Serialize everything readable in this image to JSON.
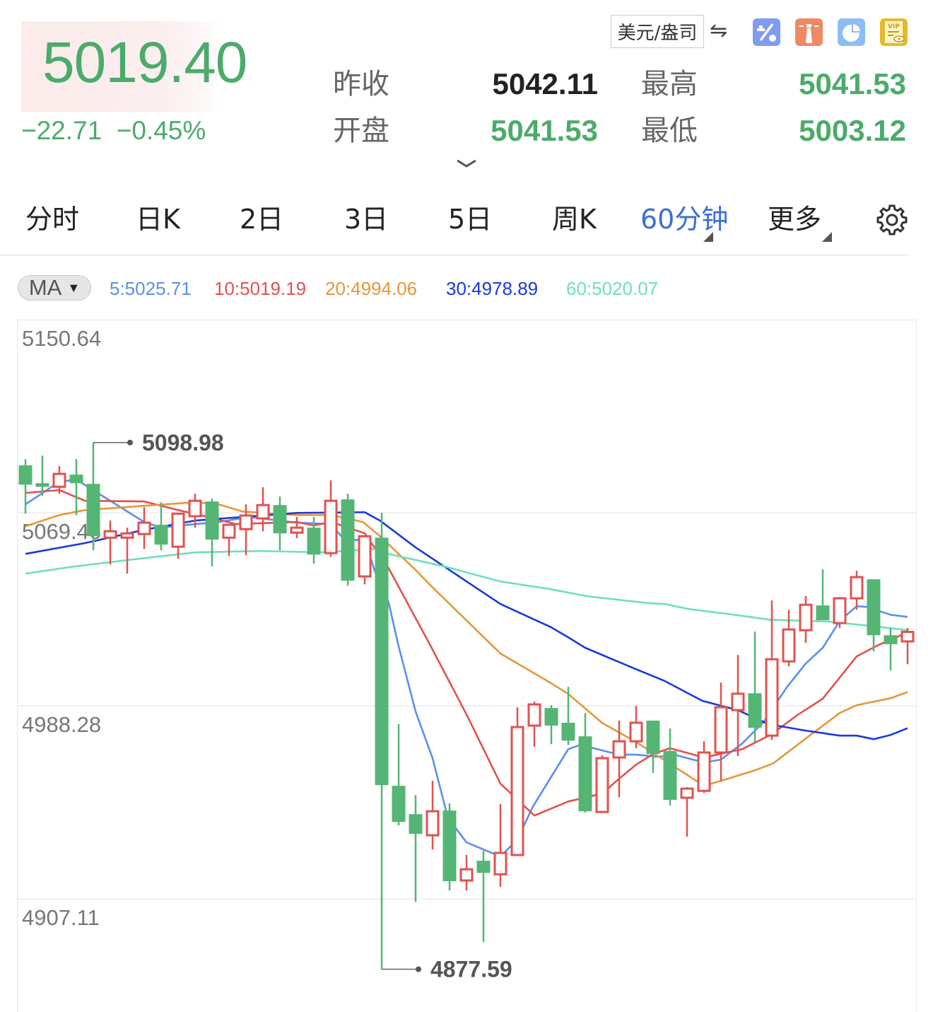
{
  "quote": {
    "price": "5019.40",
    "change": "−22.71",
    "change_pct": "−0.45%",
    "prev_close_label": "昨收",
    "prev_close": "5042.11",
    "open_label": "开盘",
    "open": "5041.53",
    "high_label": "最高",
    "high": "5041.53",
    "low_label": "最低",
    "low": "5003.12",
    "up_color": "#e0524f",
    "down_color": "#4cab6b"
  },
  "toolbar": {
    "currency": "美元/盎司",
    "swap_icon": "⇋",
    "icons": [
      "percent-icon",
      "lighthouse-icon",
      "pie-chart-icon",
      "vip-document-icon"
    ]
  },
  "tabs": [
    {
      "label": "分时"
    },
    {
      "label": "日K"
    },
    {
      "label": "2日"
    },
    {
      "label": "3日"
    },
    {
      "label": "5日"
    },
    {
      "label": "周K"
    },
    {
      "label": "60分钟",
      "active": true
    },
    {
      "label": "更多"
    }
  ],
  "indicator": {
    "selector": "MA",
    "values": [
      {
        "label": "5:5025.71",
        "color": "#5b8ff0"
      },
      {
        "label": "10:5019.19",
        "color": "#e0524f"
      },
      {
        "label": "20:4994.06",
        "color": "#e8963a"
      },
      {
        "label": "30:4978.89",
        "color": "#1a3ad8"
      },
      {
        "label": "60:5020.07",
        "color": "#6ee0bb"
      }
    ]
  },
  "chart_data": {
    "type": "candlestick",
    "interval": "60分钟",
    "y_ticks": [
      "5150.64",
      "5069.46",
      "4988.28",
      "4907.11"
    ],
    "ylim": [
      4859.6,
      5150.64
    ],
    "grid": true,
    "max_label": "5098.98",
    "min_label": "4877.59",
    "up_color": "#e0524f",
    "down_color": "#55b575",
    "candles_ohlc": [
      [
        5089.4,
        5092.0,
        5069.1,
        5081.3
      ],
      [
        5081.9,
        5093.5,
        5076.6,
        5080.4
      ],
      [
        5080.4,
        5089.1,
        5077.5,
        5085.8
      ],
      [
        5085.5,
        5092.0,
        5068.5,
        5081.9
      ],
      [
        5081.6,
        5098.98,
        5053.7,
        5059.6
      ],
      [
        5059.0,
        5066.2,
        5047.7,
        5061.7
      ],
      [
        5059.0,
        5063.2,
        5043.9,
        5060.8
      ],
      [
        5060.5,
        5071.8,
        5054.3,
        5065.3
      ],
      [
        5064.4,
        5073.9,
        5053.7,
        5056.1
      ],
      [
        5055.2,
        5069.1,
        5050.1,
        5069.1
      ],
      [
        5068.0,
        5077.5,
        5063.2,
        5074.5
      ],
      [
        5074.2,
        5075.4,
        5046.9,
        5058.2
      ],
      [
        5059.0,
        5064.4,
        5051.3,
        5064.4
      ],
      [
        5062.6,
        5073.0,
        5051.6,
        5068.3
      ],
      [
        5067.1,
        5080.2,
        5061.7,
        5072.7
      ],
      [
        5072.7,
        5076.3,
        5053.7,
        5060.8
      ],
      [
        5061.1,
        5067.7,
        5058.8,
        5063.2
      ],
      [
        5063.2,
        5067.7,
        5048.1,
        5051.9
      ],
      [
        5052.5,
        5083.1,
        5051.0,
        5074.5
      ],
      [
        5075.1,
        5077.5,
        5038.8,
        5040.9
      ],
      [
        5042.7,
        5059.6,
        5039.4,
        5059.6
      ],
      [
        5059.0,
        5069.5,
        4877.59,
        4955.0
      ],
      [
        4954.7,
        4980.6,
        4938.1,
        4939.5
      ],
      [
        4942.8,
        4950.8,
        4905.9,
        4934.5
      ],
      [
        4933.9,
        4956.8,
        4927.9,
        4944.0
      ],
      [
        4944.3,
        4947.3,
        4910.7,
        4914.6
      ],
      [
        4914.9,
        4925.6,
        4910.7,
        4919.6
      ],
      [
        4923.2,
        4927.4,
        4889.0,
        4918.1
      ],
      [
        4917.5,
        4947.0,
        4912.2,
        4926.5
      ],
      [
        4925.6,
        4987.7,
        4925.6,
        4979.4
      ],
      [
        4980.0,
        4990.1,
        4971.1,
        4988.9
      ],
      [
        4987.4,
        4988.6,
        4972.2,
        4980.0
      ],
      [
        4981.2,
        4996.3,
        4971.9,
        4973.7
      ],
      [
        4975.5,
        4985.3,
        4943.4,
        4944.0
      ],
      [
        4943.7,
        4967.5,
        4943.7,
        4966.3
      ],
      [
        4966.6,
        4982.1,
        4949.9,
        4973.4
      ],
      [
        4973.4,
        4988.3,
        4970.5,
        4981.2
      ],
      [
        4982.1,
        4982.1,
        4960.1,
        4968.1
      ],
      [
        4969.3,
        4978.8,
        4946.4,
        4948.8
      ],
      [
        4949.7,
        4954.1,
        4933.3,
        4953.5
      ],
      [
        4952.6,
        4973.4,
        4951.7,
        4968.7
      ],
      [
        4968.7,
        4998.1,
        4956.8,
        4987.7
      ],
      [
        4986.5,
        5009.7,
        4967.2,
        4993.4
      ],
      [
        4993.6,
        5019.5,
        4973.1,
        4979.1
      ],
      [
        4975.8,
        5032.6,
        4974.0,
        5007.9
      ],
      [
        5007.0,
        5028.7,
        5004.9,
        5020.4
      ],
      [
        5020.1,
        5034.4,
        5014.8,
        5030.8
      ],
      [
        5030.5,
        5045.7,
        5024.3,
        5024.3
      ],
      [
        5023.1,
        5034.1,
        5021.0,
        5033.5
      ],
      [
        5033.5,
        5045.1,
        5028.7,
        5042.4
      ],
      [
        5041.5,
        5041.5,
        5011.2,
        5018.0
      ],
      [
        5018.0,
        5021.0,
        5003.2,
        5014.2
      ],
      [
        5015.4,
        5021.0,
        5005.8,
        5019.4
      ]
    ],
    "ma_lines": [
      {
        "period": 5,
        "color": "#5b8ff0",
        "points": [
          [
            0,
            5073.0
          ],
          [
            2,
            5082.5
          ],
          [
            3,
            5083.4
          ],
          [
            7,
            5065.6
          ],
          [
            8,
            5063.2
          ],
          [
            10,
            5064.7
          ],
          [
            11.4,
            5065.6
          ],
          [
            13.2,
            5067.7
          ],
          [
            16,
            5065.3
          ],
          [
            18,
            5064.7
          ],
          [
            18.8,
            5058.1
          ],
          [
            20,
            5058.1
          ],
          [
            20.6,
            5044.8
          ],
          [
            21.4,
            5032.0
          ],
          [
            22,
            5013.3
          ],
          [
            23,
            4985.9
          ],
          [
            24,
            4966.3
          ],
          [
            24.9,
            4941.3
          ],
          [
            26,
            4930.9
          ],
          [
            28,
            4925.0
          ],
          [
            29,
            4932.1
          ],
          [
            29.9,
            4945.8
          ],
          [
            32,
            4970.1
          ],
          [
            32.7,
            4971.9
          ],
          [
            35,
            4967.8
          ],
          [
            36,
            4967.8
          ],
          [
            37.25,
            4966.9
          ],
          [
            38.4,
            4967.5
          ],
          [
            40,
            4964.5
          ],
          [
            41,
            4965.7
          ],
          [
            42.25,
            4972.5
          ],
          [
            43.5,
            4981.4
          ],
          [
            44.9,
            4996.3
          ],
          [
            46,
            5006.1
          ],
          [
            47,
            5012.7
          ],
          [
            48,
            5024.0
          ],
          [
            49,
            5030.2
          ],
          [
            49.6,
            5029.9
          ],
          [
            51,
            5026.6
          ],
          [
            52,
            5025.7
          ]
        ]
      },
      {
        "period": 10,
        "color": "#e0524f",
        "points": [
          [
            0,
            5077.8
          ],
          [
            2,
            5079.0
          ],
          [
            3.5,
            5074.5
          ],
          [
            7,
            5074.2
          ],
          [
            9,
            5070.6
          ],
          [
            10.3,
            5068.5
          ],
          [
            12.4,
            5064.7
          ],
          [
            16,
            5065.6
          ],
          [
            17,
            5064.1
          ],
          [
            18,
            5065.6
          ],
          [
            18.8,
            5063.8
          ],
          [
            20,
            5060.8
          ],
          [
            21.4,
            5046.3
          ],
          [
            23.9,
            5013.3
          ],
          [
            26,
            4984.7
          ],
          [
            28,
            4955.6
          ],
          [
            30,
            4942.2
          ],
          [
            32,
            4948.1
          ],
          [
            34,
            4951.4
          ],
          [
            34.9,
            4957.1
          ],
          [
            36,
            4963.6
          ],
          [
            37,
            4968.1
          ],
          [
            38,
            4970.5
          ],
          [
            40,
            4966.6
          ],
          [
            42.25,
            4970.1
          ],
          [
            44,
            4976.4
          ],
          [
            45.5,
            4984.4
          ],
          [
            47,
            4991.3
          ],
          [
            48,
            5000.2
          ],
          [
            49,
            5009.1
          ],
          [
            50.2,
            5013.6
          ],
          [
            52,
            5019.2
          ]
        ]
      },
      {
        "period": 20,
        "color": "#e8963a",
        "points": [
          [
            0,
            5063.8
          ],
          [
            2,
            5068.5
          ],
          [
            3.5,
            5070.6
          ],
          [
            7,
            5072.4
          ],
          [
            10,
            5073.9
          ],
          [
            11.4,
            5073.0
          ],
          [
            12.8,
            5070.0
          ],
          [
            16,
            5068.5
          ],
          [
            18,
            5068.5
          ],
          [
            19.9,
            5065.6
          ],
          [
            20.9,
            5059.6
          ],
          [
            23,
            5045.4
          ],
          [
            23.9,
            5038.8
          ],
          [
            28,
            5010.3
          ],
          [
            31,
            4997.8
          ],
          [
            32,
            4993.3
          ],
          [
            34,
            4981.1
          ],
          [
            36,
            4973.1
          ],
          [
            40,
            4954.7
          ],
          [
            41,
            4956.8
          ],
          [
            43,
            4961.2
          ],
          [
            44.1,
            4964.2
          ],
          [
            46,
            4974.6
          ],
          [
            48,
            4985.3
          ],
          [
            49,
            4988.6
          ],
          [
            51,
            4991.5
          ],
          [
            52,
            4994.1
          ]
        ]
      },
      {
        "period": 30,
        "color": "#1a3ad8",
        "points": [
          [
            0,
            5052.2
          ],
          [
            3.5,
            5056.7
          ],
          [
            7,
            5062.3
          ],
          [
            10,
            5066.2
          ],
          [
            13.9,
            5068.3
          ],
          [
            16,
            5069.4
          ],
          [
            20,
            5069.7
          ],
          [
            20.9,
            5066.2
          ],
          [
            23,
            5054.9
          ],
          [
            28,
            5031.1
          ],
          [
            31,
            5021.3
          ],
          [
            32,
            5017.1
          ],
          [
            33,
            5012.7
          ],
          [
            35.9,
            5004.0
          ],
          [
            37.7,
            4998.7
          ],
          [
            39.9,
            4990.4
          ],
          [
            42,
            4986.5
          ],
          [
            43.8,
            4980.6
          ],
          [
            46,
            4977.9
          ],
          [
            48,
            4975.8
          ],
          [
            49,
            4975.8
          ],
          [
            50,
            4974.3
          ],
          [
            51,
            4976.1
          ],
          [
            52,
            4978.9
          ]
        ]
      },
      {
        "period": 60,
        "color": "#6ee0bb",
        "points": [
          [
            0,
            5043.9
          ],
          [
            2.8,
            5046.8
          ],
          [
            6.3,
            5049.8
          ],
          [
            10,
            5052.8
          ],
          [
            13.9,
            5053.4
          ],
          [
            17.4,
            5052.8
          ],
          [
            20.9,
            5054.3
          ],
          [
            21.4,
            5052.2
          ],
          [
            24.75,
            5046.8
          ],
          [
            28,
            5040.6
          ],
          [
            31,
            5037.3
          ],
          [
            33.1,
            5034.4
          ],
          [
            36.8,
            5031.4
          ],
          [
            37.7,
            5031.1
          ],
          [
            39.1,
            5029.0
          ],
          [
            41.8,
            5026.6
          ],
          [
            43.9,
            5024.5
          ],
          [
            47.4,
            5023.7
          ],
          [
            50.2,
            5021.6
          ],
          [
            52,
            5020.1
          ]
        ]
      }
    ]
  }
}
